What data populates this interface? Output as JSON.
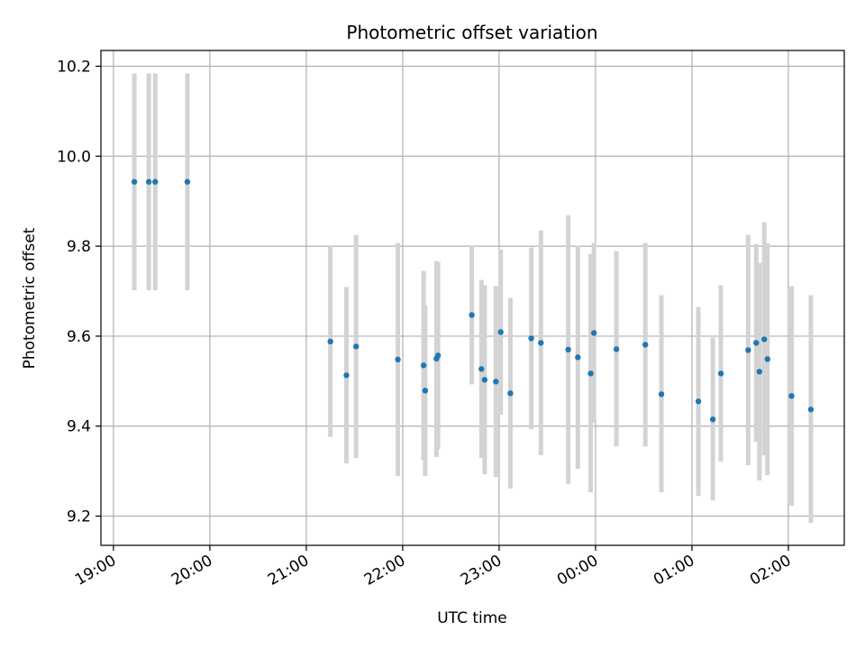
{
  "chart_data": {
    "type": "scatter",
    "title": "Photometric offset variation",
    "xlabel": "UTC time",
    "ylabel": "Photometric offset",
    "x_ticks": [
      "19:00",
      "20:00",
      "21:00",
      "22:00",
      "23:00",
      "00:00",
      "01:00",
      "02:00"
    ],
    "y_ticks": [
      "9.2",
      "9.4",
      "9.6",
      "9.8",
      "10.0",
      "10.2"
    ],
    "x_range_hours": [
      18.87,
      26.58
    ],
    "ylim": [
      9.135,
      10.235
    ],
    "grid": true,
    "colors": {
      "points": "#1f77b4",
      "errorbars": "#d3d3d3",
      "grid": "#b0b0b0"
    },
    "points": [
      {
        "t": "19:13",
        "y": 9.943,
        "ylo": 9.702,
        "yhi": 10.184
      },
      {
        "t": "19:22",
        "y": 9.943,
        "ylo": 9.702,
        "yhi": 10.184
      },
      {
        "t": "19:26",
        "y": 9.943,
        "ylo": 9.702,
        "yhi": 10.184
      },
      {
        "t": "19:46",
        "y": 9.943,
        "ylo": 9.702,
        "yhi": 10.184
      },
      {
        "t": "21:15",
        "y": 9.588,
        "ylo": 9.376,
        "yhi": 9.8
      },
      {
        "t": "21:25",
        "y": 9.513,
        "ylo": 9.317,
        "yhi": 9.709
      },
      {
        "t": "21:31",
        "y": 9.577,
        "ylo": 9.329,
        "yhi": 9.825
      },
      {
        "t": "21:57",
        "y": 9.548,
        "ylo": 9.289,
        "yhi": 9.807
      },
      {
        "t": "22:13",
        "y": 9.535,
        "ylo": 9.325,
        "yhi": 9.745
      },
      {
        "t": "22:14",
        "y": 9.479,
        "ylo": 9.289,
        "yhi": 9.669
      },
      {
        "t": "22:21",
        "y": 9.55,
        "ylo": 9.331,
        "yhi": 9.767
      },
      {
        "t": "22:22",
        "y": 9.557,
        "ylo": 9.349,
        "yhi": 9.765
      },
      {
        "t": "22:43",
        "y": 9.647,
        "ylo": 9.493,
        "yhi": 9.801
      },
      {
        "t": "22:49",
        "y": 9.527,
        "ylo": 9.329,
        "yhi": 9.725
      },
      {
        "t": "22:51",
        "y": 9.503,
        "ylo": 9.293,
        "yhi": 9.713
      },
      {
        "t": "22:58",
        "y": 9.499,
        "ylo": 9.287,
        "yhi": 9.711
      },
      {
        "t": "23:01",
        "y": 9.609,
        "ylo": 9.425,
        "yhi": 9.793
      },
      {
        "t": "23:07",
        "y": 9.473,
        "ylo": 9.261,
        "yhi": 9.685
      },
      {
        "t": "23:20",
        "y": 9.595,
        "ylo": 9.393,
        "yhi": 9.797
      },
      {
        "t": "23:26",
        "y": 9.585,
        "ylo": 9.335,
        "yhi": 9.835
      },
      {
        "t": "23:43",
        "y": 9.57,
        "ylo": 9.271,
        "yhi": 9.869
      },
      {
        "t": "23:49",
        "y": 9.553,
        "ylo": 9.305,
        "yhi": 9.801
      },
      {
        "t": "23:57",
        "y": 9.517,
        "ylo": 9.253,
        "yhi": 9.783
      },
      {
        "t": "23:59",
        "y": 9.607,
        "ylo": 9.407,
        "yhi": 9.807
      },
      {
        "t": "00:13",
        "y": 9.571,
        "ylo": 9.355,
        "yhi": 9.789
      },
      {
        "t": "00:31",
        "y": 9.581,
        "ylo": 9.355,
        "yhi": 9.807
      },
      {
        "t": "00:41",
        "y": 9.471,
        "ylo": 9.253,
        "yhi": 9.691
      },
      {
        "t": "01:04",
        "y": 9.455,
        "ylo": 9.245,
        "yhi": 9.665
      },
      {
        "t": "01:13",
        "y": 9.415,
        "ylo": 9.235,
        "yhi": 9.597
      },
      {
        "t": "01:18",
        "y": 9.517,
        "ylo": 9.321,
        "yhi": 9.713
      },
      {
        "t": "01:35",
        "y": 9.569,
        "ylo": 9.313,
        "yhi": 9.825
      },
      {
        "t": "01:40",
        "y": 9.585,
        "ylo": 9.365,
        "yhi": 9.805
      },
      {
        "t": "01:42",
        "y": 9.521,
        "ylo": 9.279,
        "yhi": 9.763
      },
      {
        "t": "01:45",
        "y": 9.593,
        "ylo": 9.335,
        "yhi": 9.853
      },
      {
        "t": "01:47",
        "y": 9.549,
        "ylo": 9.291,
        "yhi": 9.807
      },
      {
        "t": "02:02",
        "y": 9.467,
        "ylo": 9.223,
        "yhi": 9.711
      },
      {
        "t": "02:14",
        "y": 9.437,
        "ylo": 9.185,
        "yhi": 9.691
      }
    ]
  }
}
